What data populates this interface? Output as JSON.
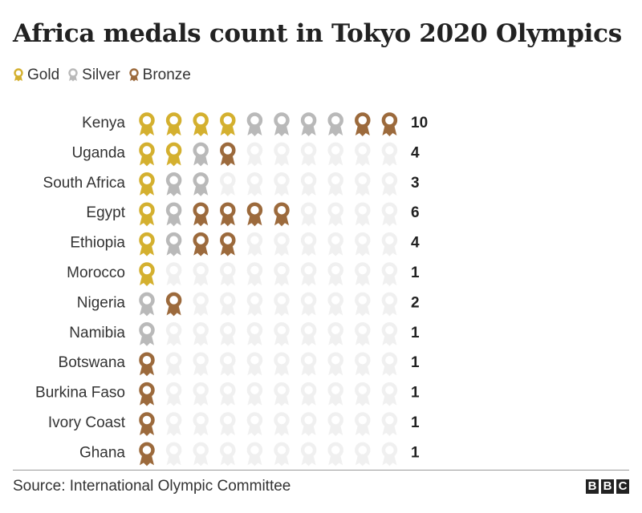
{
  "title": "Africa medals count in Tokyo 2020 Olympics",
  "legend": [
    {
      "label": "Gold",
      "color": "#d4b02f",
      "icon": "gold-medal-icon"
    },
    {
      "label": "Silver",
      "color": "#b9b9b9",
      "icon": "silver-medal-icon"
    },
    {
      "label": "Bronze",
      "color": "#9c6a3c",
      "icon": "bronze-medal-icon"
    }
  ],
  "colors": {
    "gold": "#d4b02f",
    "silver": "#b9b9b9",
    "bronze": "#9c6a3c",
    "empty": "#f0f0f0"
  },
  "chart_data": {
    "type": "table",
    "title": "Africa medals count in Tokyo 2020 Olympics",
    "max_slots": 10,
    "series": [
      "Gold",
      "Silver",
      "Bronze"
    ],
    "rows": [
      {
        "country": "Kenya",
        "gold": 4,
        "silver": 4,
        "bronze": 2,
        "total": 10
      },
      {
        "country": "Uganda",
        "gold": 2,
        "silver": 1,
        "bronze": 1,
        "total": 4
      },
      {
        "country": "South Africa",
        "gold": 1,
        "silver": 2,
        "bronze": 0,
        "total": 3
      },
      {
        "country": "Egypt",
        "gold": 1,
        "silver": 1,
        "bronze": 4,
        "total": 6
      },
      {
        "country": "Ethiopia",
        "gold": 1,
        "silver": 1,
        "bronze": 2,
        "total": 4
      },
      {
        "country": "Morocco",
        "gold": 1,
        "silver": 0,
        "bronze": 0,
        "total": 1
      },
      {
        "country": "Nigeria",
        "gold": 0,
        "silver": 1,
        "bronze": 1,
        "total": 2
      },
      {
        "country": "Namibia",
        "gold": 0,
        "silver": 1,
        "bronze": 0,
        "total": 1
      },
      {
        "country": "Botswana",
        "gold": 0,
        "silver": 0,
        "bronze": 1,
        "total": 1
      },
      {
        "country": "Burkina Faso",
        "gold": 0,
        "silver": 0,
        "bronze": 1,
        "total": 1
      },
      {
        "country": "Ivory Coast",
        "gold": 0,
        "silver": 0,
        "bronze": 1,
        "total": 1
      },
      {
        "country": "Ghana",
        "gold": 0,
        "silver": 0,
        "bronze": 1,
        "total": 1
      }
    ]
  },
  "source": "Source: International Olympic Committee",
  "logo": [
    "B",
    "B",
    "C"
  ]
}
